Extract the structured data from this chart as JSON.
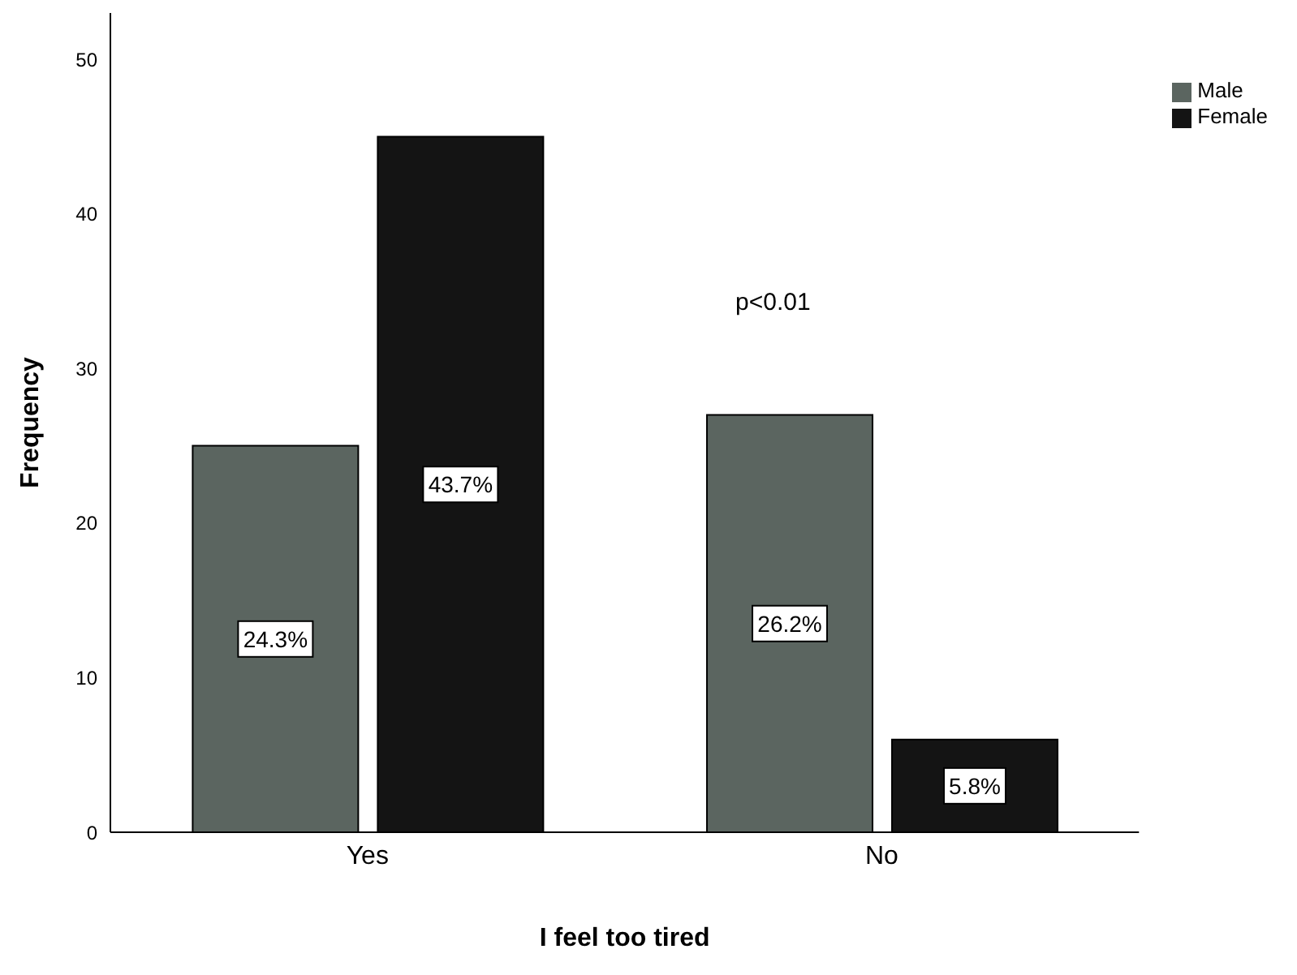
{
  "chart_data": {
    "type": "bar",
    "xlabel": "I feel too tired",
    "ylabel": "Frequency",
    "categories": [
      "Yes",
      "No"
    ],
    "series": [
      {
        "name": "Male",
        "color": "#5b6560",
        "values": [
          25,
          27
        ]
      },
      {
        "name": "Female",
        "color": "#141414",
        "values": [
          45,
          6
        ]
      }
    ],
    "ylim": [
      0,
      53
    ],
    "yticks": [
      0,
      10,
      20,
      30,
      40,
      50
    ],
    "grid": false,
    "legend": "top right",
    "annotations": [
      "p<0.01",
      "24.3%",
      "26.2%",
      "43.7%",
      "5.8%"
    ]
  }
}
